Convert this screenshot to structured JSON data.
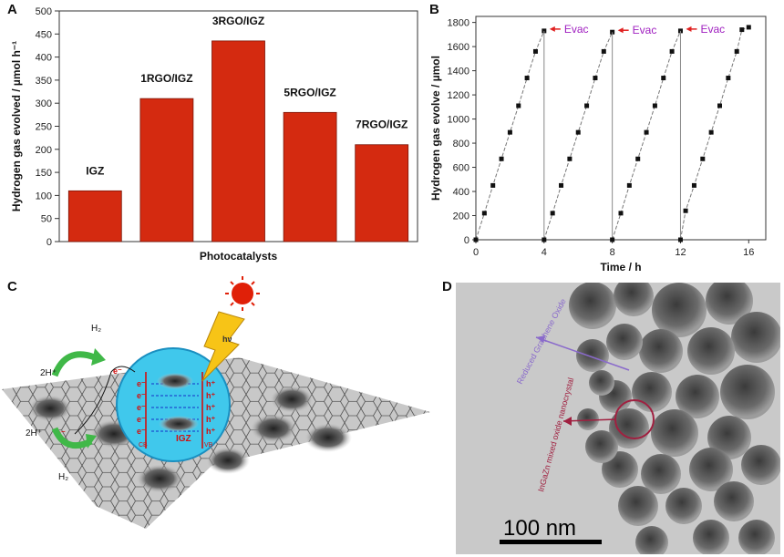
{
  "panels": {
    "a": "A",
    "b": "B",
    "c": "C",
    "d": "D"
  },
  "chart_data": [
    {
      "type": "bar",
      "categories": [
        "IGZ",
        "1RGO/IGZ",
        "3RGO/IGZ",
        "5RGO/IGZ",
        "7RGO/IGZ"
      ],
      "values": [
        110,
        310,
        435,
        280,
        210
      ],
      "xlabel": "Photocatalysts",
      "ylabel": "Hydrogen gas evolved / µmol h⁻¹",
      "ylim": [
        0,
        500
      ],
      "yticks": [
        0,
        50,
        100,
        150,
        200,
        250,
        300,
        350,
        400,
        450,
        500
      ],
      "bar_color": "#d42a10",
      "grid": false
    },
    {
      "type": "line",
      "xlabel": "Time / h",
      "ylabel": "Hydrogen gas evolve / µmol",
      "xlim": [
        0,
        17
      ],
      "ylim": [
        0,
        1850
      ],
      "xticks": [
        0,
        4,
        8,
        12,
        16
      ],
      "yticks": [
        0,
        200,
        400,
        600,
        800,
        1000,
        1200,
        1400,
        1600,
        1800
      ],
      "series": [
        {
          "x": [
            0,
            0.5,
            1,
            1.5,
            2,
            2.5,
            3,
            3.5,
            4
          ],
          "y": [
            0,
            220,
            450,
            670,
            890,
            1110,
            1340,
            1560,
            1730
          ]
        },
        {
          "x": [
            4,
            4.5,
            5,
            5.5,
            6,
            6.5,
            7,
            7.5,
            8
          ],
          "y": [
            0,
            220,
            450,
            670,
            890,
            1110,
            1340,
            1560,
            1720
          ]
        },
        {
          "x": [
            8,
            8.5,
            9,
            9.5,
            10,
            10.5,
            11,
            11.5,
            12
          ],
          "y": [
            0,
            220,
            450,
            670,
            890,
            1110,
            1340,
            1560,
            1730
          ]
        },
        {
          "x": [
            12,
            12.3,
            12.8,
            13.3,
            13.8,
            14.3,
            14.8,
            15.3,
            15.6,
            16
          ],
          "y": [
            0,
            240,
            450,
            670,
            890,
            1110,
            1340,
            1560,
            1740,
            1760
          ]
        }
      ],
      "annotations": [
        "Evac",
        "Evac",
        "Evac"
      ],
      "annotation_color": "#a020c0"
    }
  ],
  "schematic": {
    "h2_top": "H₂",
    "h2_bottom": "H₂",
    "proton_top": "2H⁺",
    "proton_bottom": "2H⁺",
    "photon": "hν",
    "electron": "e⁻",
    "hole": "h⁺",
    "core": "IGZ",
    "band_left": "CB",
    "band_right": "VB"
  },
  "micrograph": {
    "label_rgo": "Reduced Graphene Oxide",
    "label_igz": "InGaZn mixed oxide nanocrystal",
    "scale_bar": "100 nm"
  }
}
